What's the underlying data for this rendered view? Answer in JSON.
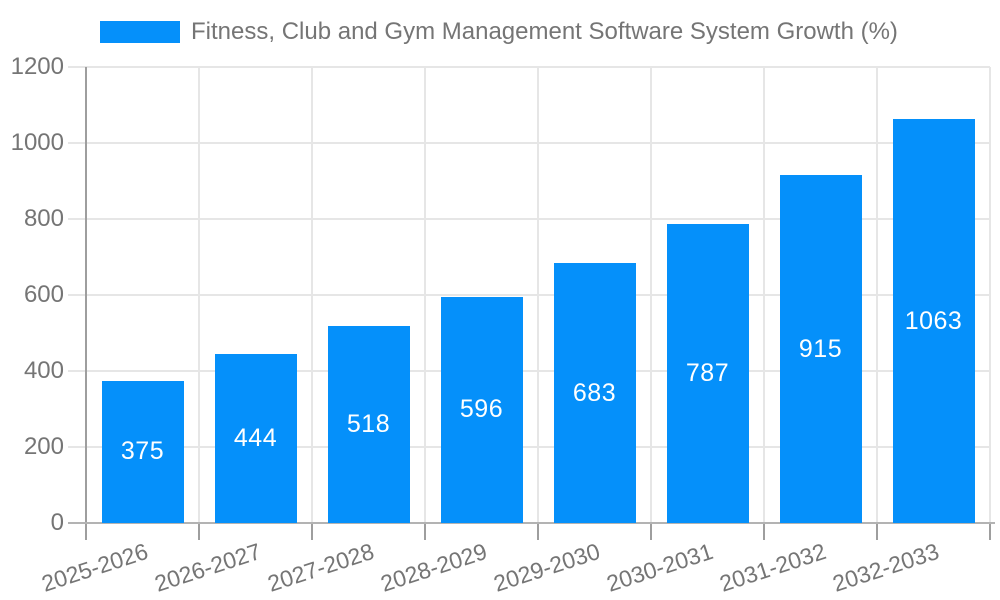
{
  "chart_data": {
    "type": "bar",
    "title": "Fitness, Club and Gym Management Software System Growth (%)",
    "categories": [
      "2025-2026",
      "2026-2027",
      "2027-2028",
      "2028-2029",
      "2029-2030",
      "2030-2031",
      "2031-2032",
      "2032-2033"
    ],
    "values": [
      375,
      444,
      518,
      596,
      683,
      787,
      915,
      1063
    ],
    "xlabel": "",
    "ylabel": "",
    "ylim": [
      0,
      1200
    ],
    "ytick_step": 200,
    "yticks": [
      0,
      200,
      400,
      600,
      800,
      1000,
      1200
    ],
    "grid": true,
    "legend_position": "top",
    "colors": {
      "bar": "#0590fa",
      "bar_value_text": "#ffffff",
      "axis_text": "#757575",
      "gridline": "#e6e6e6",
      "axis_line": "#9e9e9e",
      "baseline": "#b3b3b3",
      "background": "#ffffff"
    }
  }
}
